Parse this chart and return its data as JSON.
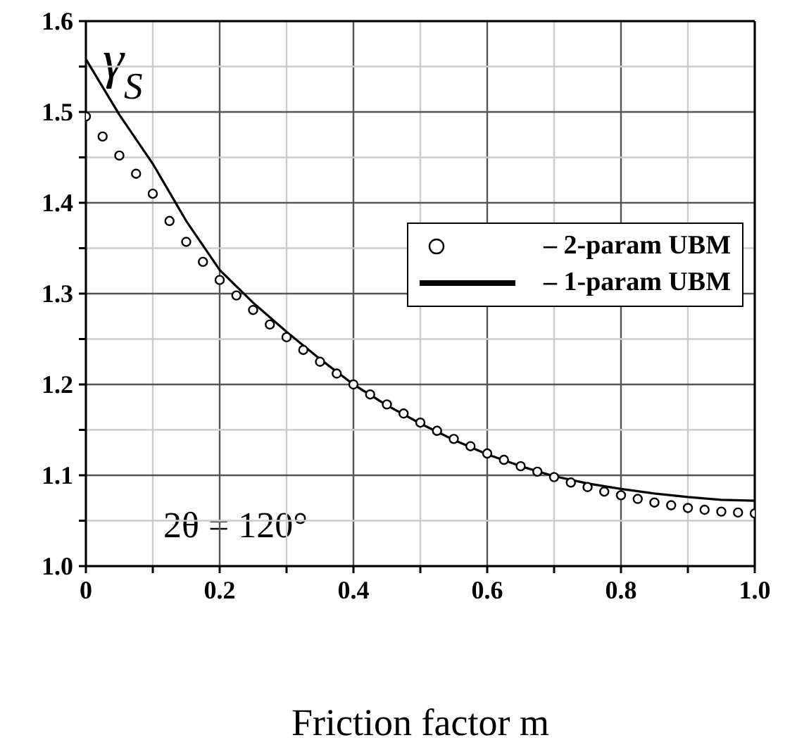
{
  "chart_data": {
    "type": "line",
    "xlabel": "Friction factor m",
    "ylabel": "γ$_{S}$",
    "annotations": [
      "2θ = 120°"
    ],
    "xlim": [
      0,
      1
    ],
    "ylim": [
      1,
      1.6
    ],
    "xticks": [
      0,
      {
        "value": 0.1,
        "label": null
      },
      0.2,
      {
        "value": 0.3,
        "label": null
      },
      0.4,
      {
        "value": 0.5,
        "label": null
      },
      0.6,
      {
        "value": 0.7,
        "label": null
      },
      0.8,
      {
        "value": 0.9,
        "label": null
      },
      {
        "value": 1,
        "label": "1.0"
      }
    ],
    "yticks": [
      {
        "value": 1,
        "label": "1.0"
      },
      {
        "value": 1.05,
        "label": null
      },
      1.1,
      {
        "value": 1.15,
        "label": null
      },
      1.2,
      {
        "value": 1.25,
        "label": null
      },
      1.3,
      {
        "value": 1.35,
        "label": null
      },
      1.4,
      {
        "value": 1.45,
        "label": null
      },
      1.5,
      {
        "value": 1.55,
        "label": null
      },
      1.6
    ],
    "grid": true,
    "legend": "right",
    "series": [
      {
        "name": "– 2-param UBM",
        "type": "scatter",
        "marker": "circle",
        "color": "#000000",
        "x": [
          0,
          0.025,
          0.05,
          0.075,
          0.1,
          0.125,
          0.15,
          0.175,
          0.2,
          0.225,
          0.25,
          0.275,
          0.3,
          0.325,
          0.35,
          0.375,
          0.4,
          0.425,
          0.45,
          0.475,
          0.5,
          0.525,
          0.55,
          0.575,
          0.6,
          0.625,
          0.65,
          0.675,
          0.7,
          0.725,
          0.75,
          0.775,
          0.8,
          0.825,
          0.85,
          0.875,
          0.9,
          0.925,
          0.95,
          0.975,
          1
        ],
        "values": [
          1.495,
          1.473,
          1.452,
          1.432,
          1.41,
          1.38,
          1.357,
          1.335,
          1.315,
          1.298,
          1.282,
          1.266,
          1.252,
          1.238,
          1.225,
          1.212,
          1.2,
          1.189,
          1.178,
          1.168,
          1.158,
          1.149,
          1.14,
          1.132,
          1.124,
          1.117,
          1.11,
          1.104,
          1.098,
          1.092,
          1.087,
          1.082,
          1.078,
          1.074,
          1.07,
          1.067,
          1.064,
          1.062,
          1.06,
          1.059,
          1.058
        ]
      },
      {
        "name": "– 1-param UBM",
        "type": "line",
        "marker": "none",
        "line_style": "solid",
        "color": "#000000",
        "x": [
          0,
          0.05,
          0.1,
          0.15,
          0.2,
          0.25,
          0.3,
          0.35,
          0.4,
          0.45,
          0.5,
          0.55,
          0.6,
          0.65,
          0.7,
          0.75,
          0.8,
          0.85,
          0.9,
          0.95,
          1
        ],
        "values": [
          1.558,
          1.497,
          1.443,
          1.38,
          1.326,
          1.29,
          1.258,
          1.228,
          1.2,
          1.177,
          1.157,
          1.139,
          1.123,
          1.11,
          1.099,
          1.091,
          1.085,
          1.08,
          1.076,
          1.073,
          1.072
        ]
      }
    ]
  }
}
